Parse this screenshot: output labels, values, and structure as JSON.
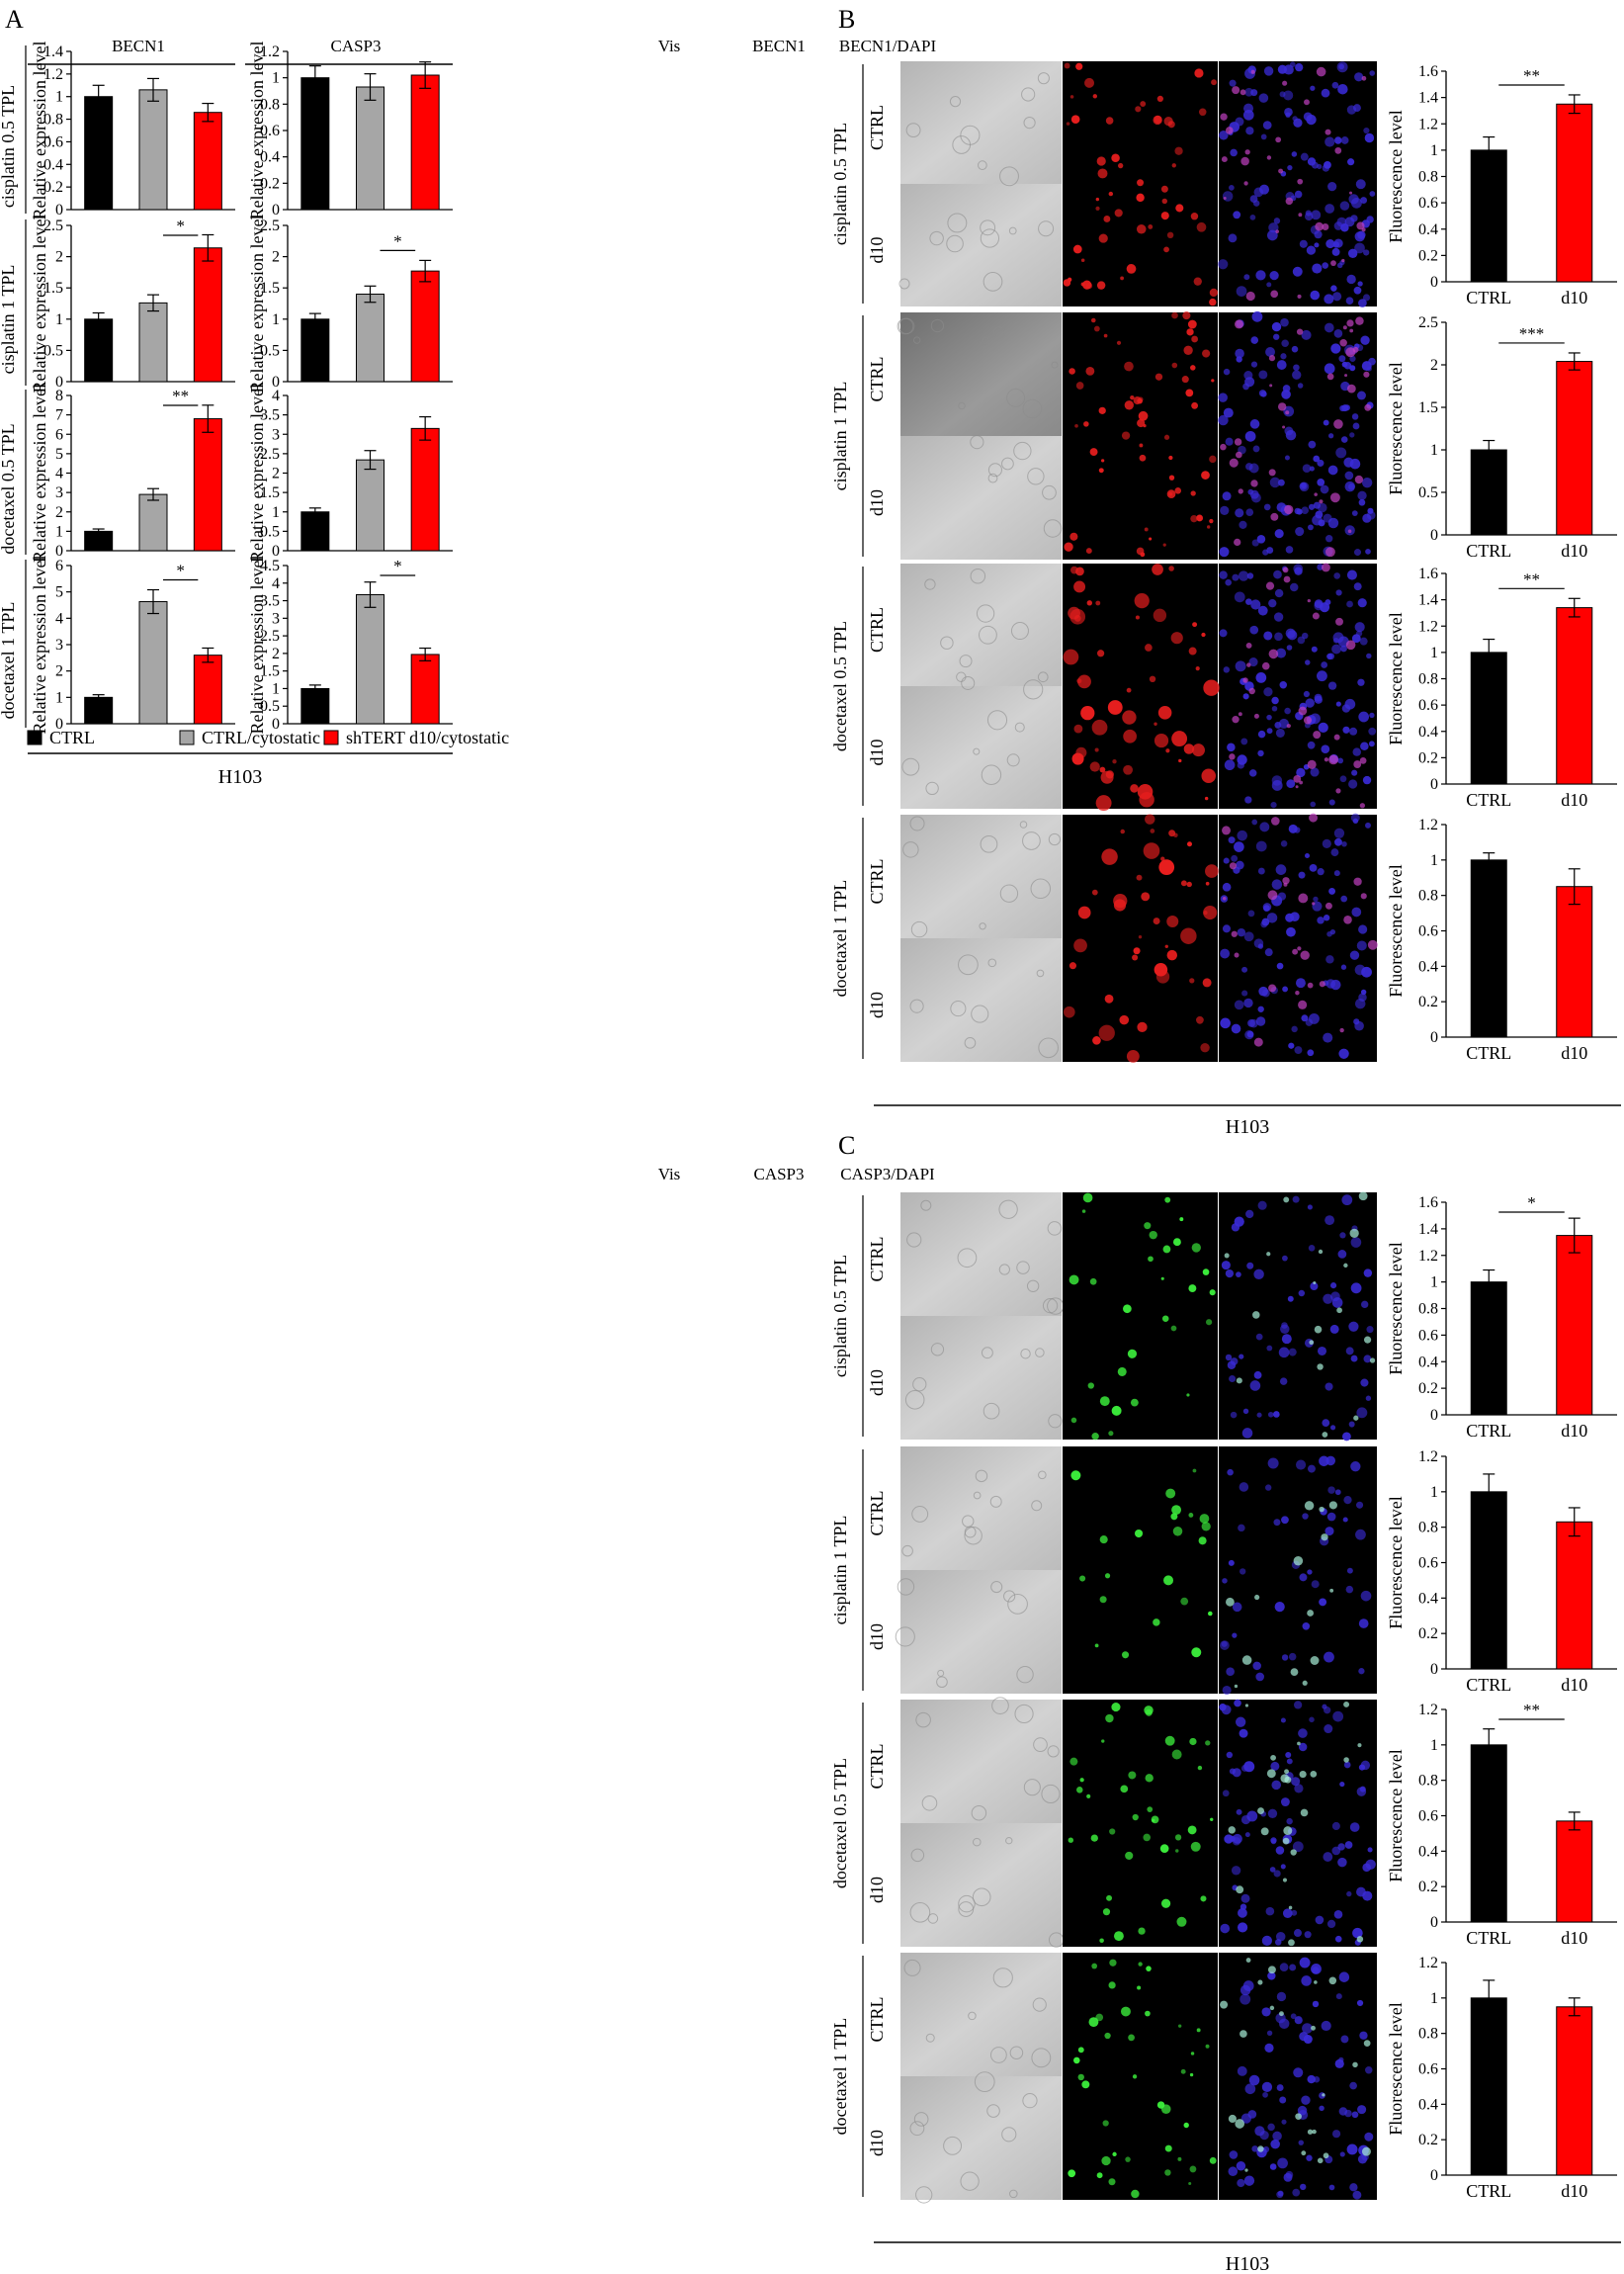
{
  "panels": {
    "A": {
      "letter": "A",
      "genes": [
        "BECN1",
        "CASP3"
      ],
      "treatments": [
        "cisplatin 0.5 TPL",
        "cisplatin 1 TPL",
        "docetaxel 0.5 TPL",
        "docetaxel 1 TPL"
      ],
      "ylabel": "Relative expression level",
      "footer": "H103",
      "legend": [
        {
          "label": "CTRL",
          "color": "#000000"
        },
        {
          "label": "CTRL/cytostatic",
          "color": "#a6a6a6"
        },
        {
          "label": "shTERT d10/cytostatic",
          "color": "#ff0000"
        }
      ]
    },
    "B": {
      "letter": "B",
      "columns": [
        "Vis",
        "BECN1",
        "BECN1/DAPI"
      ],
      "treatments": [
        "cisplatin 0.5 TPL",
        "cisplatin 1 TPL",
        "docetaxel 0.5 TPL",
        "docetaxel 1 TPL"
      ],
      "row_labels": [
        "CTRL",
        "d10"
      ],
      "ylabel": "Fluorescence level",
      "footer": "H103",
      "stain_color": "#e81e1e"
    },
    "C": {
      "letter": "C",
      "columns": [
        "Vis",
        "CASP3",
        "CASP3/DAPI"
      ],
      "treatments": [
        "cisplatin 0.5 TPL",
        "cisplatin 1 TPL",
        "docetaxel 0.5 TPL",
        "docetaxel 1 TPL"
      ],
      "row_labels": [
        "CTRL",
        "d10"
      ],
      "ylabel": "Fluorescence level",
      "footer": "H103",
      "stain_color": "#3cf03c"
    }
  },
  "chart_data": [
    {
      "type": "bar",
      "panel": "A",
      "gene": "BECN1",
      "treatment": "cisplatin 0.5 TPL",
      "categories": [
        "CTRL",
        "CTRL/cytostatic",
        "shTERT d10/cytostatic"
      ],
      "values": [
        1.0,
        1.06,
        0.86
      ],
      "errors": [
        0.1,
        0.1,
        0.08
      ],
      "ylim": [
        0,
        1.4
      ],
      "yticks": [
        "0",
        "0.2",
        "0.4",
        "0.6",
        "0.8",
        "1",
        "1.2",
        "1.4"
      ],
      "ylabel": "Relative expression level",
      "sig": null
    },
    {
      "type": "bar",
      "panel": "A",
      "gene": "CASP3",
      "treatment": "cisplatin 0.5 TPL",
      "categories": [
        "CTRL",
        "CTRL/cytostatic",
        "shTERT d10/cytostatic"
      ],
      "values": [
        1.0,
        0.93,
        1.02
      ],
      "errors": [
        0.09,
        0.1,
        0.1
      ],
      "ylim": [
        0,
        1.2
      ],
      "yticks": [
        "0",
        "0.2",
        "0.4",
        "0.6",
        "0.8",
        "1",
        "1.2"
      ],
      "ylabel": "Relative expression level",
      "sig": null
    },
    {
      "type": "bar",
      "panel": "A",
      "gene": "BECN1",
      "treatment": "cisplatin 1 TPL",
      "categories": [
        "CTRL",
        "CTRL/cytostatic",
        "shTERT d10/cytostatic"
      ],
      "values": [
        1.0,
        1.26,
        2.14
      ],
      "errors": [
        0.1,
        0.13,
        0.21
      ],
      "ylim": [
        0,
        2.5
      ],
      "yticks": [
        "0",
        "0.5",
        "1",
        "1.5",
        "2",
        "2.5"
      ],
      "ylabel": "Relative expression level",
      "sig": {
        "from": 1,
        "to": 2,
        "label": "*"
      }
    },
    {
      "type": "bar",
      "panel": "A",
      "gene": "CASP3",
      "treatment": "cisplatin 1 TPL",
      "categories": [
        "CTRL",
        "CTRL/cytostatic",
        "shTERT d10/cytostatic"
      ],
      "values": [
        1.0,
        1.4,
        1.77
      ],
      "errors": [
        0.09,
        0.13,
        0.17
      ],
      "ylim": [
        0,
        2.5
      ],
      "yticks": [
        "0",
        "0.5",
        "1",
        "1.5",
        "2",
        "2.5"
      ],
      "ylabel": "Relative expression level",
      "sig": {
        "from": 1,
        "to": 2,
        "label": "*"
      }
    },
    {
      "type": "bar",
      "panel": "A",
      "gene": "BECN1",
      "treatment": "docetaxel 0.5 TPL",
      "categories": [
        "CTRL",
        "CTRL/cytostatic",
        "shTERT d10/cytostatic"
      ],
      "values": [
        1.0,
        2.9,
        6.8
      ],
      "errors": [
        0.12,
        0.3,
        0.7
      ],
      "ylim": [
        0,
        8
      ],
      "yticks": [
        "0",
        "1",
        "2",
        "3",
        "4",
        "5",
        "6",
        "7",
        "8"
      ],
      "ylabel": "Relative expression level",
      "sig": {
        "from": 1,
        "to": 2,
        "label": "**"
      }
    },
    {
      "type": "bar",
      "panel": "A",
      "gene": "CASP3",
      "treatment": "docetaxel 0.5 TPL",
      "categories": [
        "CTRL",
        "CTRL/cytostatic",
        "shTERT d10/cytostatic"
      ],
      "values": [
        1.0,
        2.34,
        3.15
      ],
      "errors": [
        0.1,
        0.24,
        0.3
      ],
      "ylim": [
        0,
        4
      ],
      "yticks": [
        "0",
        "0.5",
        "1",
        "1.5",
        "2",
        "2.5",
        "3",
        "3.5",
        "4"
      ],
      "ylabel": "Relative expression level",
      "sig": null
    },
    {
      "type": "bar",
      "panel": "A",
      "gene": "BECN1",
      "treatment": "docetaxel 1 TPL",
      "categories": [
        "CTRL",
        "CTRL/cytostatic",
        "shTERT d10/cytostatic"
      ],
      "values": [
        1.0,
        4.63,
        2.6
      ],
      "errors": [
        0.1,
        0.45,
        0.27
      ],
      "ylim": [
        0,
        6
      ],
      "yticks": [
        "0",
        "1",
        "2",
        "3",
        "4",
        "5",
        "6"
      ],
      "ylabel": "Relative expression level",
      "sig": {
        "from": 1,
        "to": 2,
        "label": "*"
      }
    },
    {
      "type": "bar",
      "panel": "A",
      "gene": "CASP3",
      "treatment": "docetaxel 1 TPL",
      "categories": [
        "CTRL",
        "CTRL/cytostatic",
        "shTERT d10/cytostatic"
      ],
      "values": [
        1.0,
        3.67,
        1.97
      ],
      "errors": [
        0.1,
        0.36,
        0.18
      ],
      "ylim": [
        0,
        4.5
      ],
      "yticks": [
        "0",
        "0.5",
        "1",
        "1.5",
        "2",
        "2.5",
        "3",
        "3.5",
        "4",
        "4.5"
      ],
      "ylabel": "Relative expression level",
      "sig": {
        "from": 1,
        "to": 2,
        "label": "*"
      }
    },
    {
      "type": "bar",
      "panel": "B",
      "stain": "BECN1",
      "treatment": "cisplatin 0.5 TPL",
      "categories": [
        "CTRL",
        "d10"
      ],
      "values": [
        1.0,
        1.35
      ],
      "errors": [
        0.1,
        0.07
      ],
      "ylim": [
        0,
        1.6
      ],
      "yticks": [
        "0",
        "0.2",
        "0.4",
        "0.6",
        "0.8",
        "1",
        "1.2",
        "1.4",
        "1.6"
      ],
      "ylabel": "Fluorescence level",
      "sig": {
        "label": "**"
      }
    },
    {
      "type": "bar",
      "panel": "B",
      "stain": "BECN1",
      "treatment": "cisplatin 1 TPL",
      "categories": [
        "CTRL",
        "d10"
      ],
      "values": [
        1.0,
        2.04
      ],
      "errors": [
        0.11,
        0.1
      ],
      "ylim": [
        0,
        2.5
      ],
      "yticks": [
        "0",
        "0.5",
        "1",
        "1.5",
        "2",
        "2.5"
      ],
      "ylabel": "Fluorescence level",
      "sig": {
        "label": "***"
      }
    },
    {
      "type": "bar",
      "panel": "B",
      "stain": "BECN1",
      "treatment": "docetaxel 0.5 TPL",
      "categories": [
        "CTRL",
        "d10"
      ],
      "values": [
        1.0,
        1.34
      ],
      "errors": [
        0.1,
        0.07
      ],
      "ylim": [
        0,
        1.6
      ],
      "yticks": [
        "0",
        "0.2",
        "0.4",
        "0.6",
        "0.8",
        "1",
        "1.2",
        "1.4",
        "1.6"
      ],
      "ylabel": "Fluorescence level",
      "sig": {
        "label": "**"
      }
    },
    {
      "type": "bar",
      "panel": "B",
      "stain": "BECN1",
      "treatment": "docetaxel 1 TPL",
      "categories": [
        "CTRL",
        "d10"
      ],
      "values": [
        1.0,
        0.85
      ],
      "errors": [
        0.04,
        0.1
      ],
      "ylim": [
        0,
        1.2
      ],
      "yticks": [
        "0",
        "0.2",
        "0.4",
        "0.6",
        "0.8",
        "1",
        "1.2"
      ],
      "ylabel": "Fluorescence level",
      "sig": null
    },
    {
      "type": "bar",
      "panel": "C",
      "stain": "CASP3",
      "treatment": "cisplatin 0.5 TPL",
      "categories": [
        "CTRL",
        "d10"
      ],
      "values": [
        1.0,
        1.35
      ],
      "errors": [
        0.09,
        0.13
      ],
      "ylim": [
        0,
        1.6
      ],
      "yticks": [
        "0",
        "0.2",
        "0.4",
        "0.6",
        "0.8",
        "1",
        "1.2",
        "1.4",
        "1.6"
      ],
      "ylabel": "Fluorescence level",
      "sig": {
        "label": "*"
      }
    },
    {
      "type": "bar",
      "panel": "C",
      "stain": "CASP3",
      "treatment": "cisplatin 1 TPL",
      "categories": [
        "CTRL",
        "d10"
      ],
      "values": [
        1.0,
        0.83
      ],
      "errors": [
        0.1,
        0.08
      ],
      "ylim": [
        0,
        1.2
      ],
      "yticks": [
        "0",
        "0.2",
        "0.4",
        "0.6",
        "0.8",
        "1",
        "1.2"
      ],
      "ylabel": "Fluorescence level",
      "sig": null
    },
    {
      "type": "bar",
      "panel": "C",
      "stain": "CASP3",
      "treatment": "docetaxel 0.5 TPL",
      "categories": [
        "CTRL",
        "d10"
      ],
      "values": [
        1.0,
        0.57
      ],
      "errors": [
        0.09,
        0.05
      ],
      "ylim": [
        0,
        1.2
      ],
      "yticks": [
        "0",
        "0.2",
        "0.4",
        "0.6",
        "0.8",
        "1",
        "1.2"
      ],
      "ylabel": "Fluorescence level",
      "sig": {
        "label": "**"
      }
    },
    {
      "type": "bar",
      "panel": "C",
      "stain": "CASP3",
      "treatment": "docetaxel 1 TPL",
      "categories": [
        "CTRL",
        "d10"
      ],
      "values": [
        1.0,
        0.95
      ],
      "errors": [
        0.1,
        0.05
      ],
      "ylim": [
        0,
        1.2
      ],
      "yticks": [
        "0",
        "0.2",
        "0.4",
        "0.6",
        "0.8",
        "1",
        "1.2"
      ],
      "ylabel": "Fluorescence level",
      "sig": null
    }
  ]
}
